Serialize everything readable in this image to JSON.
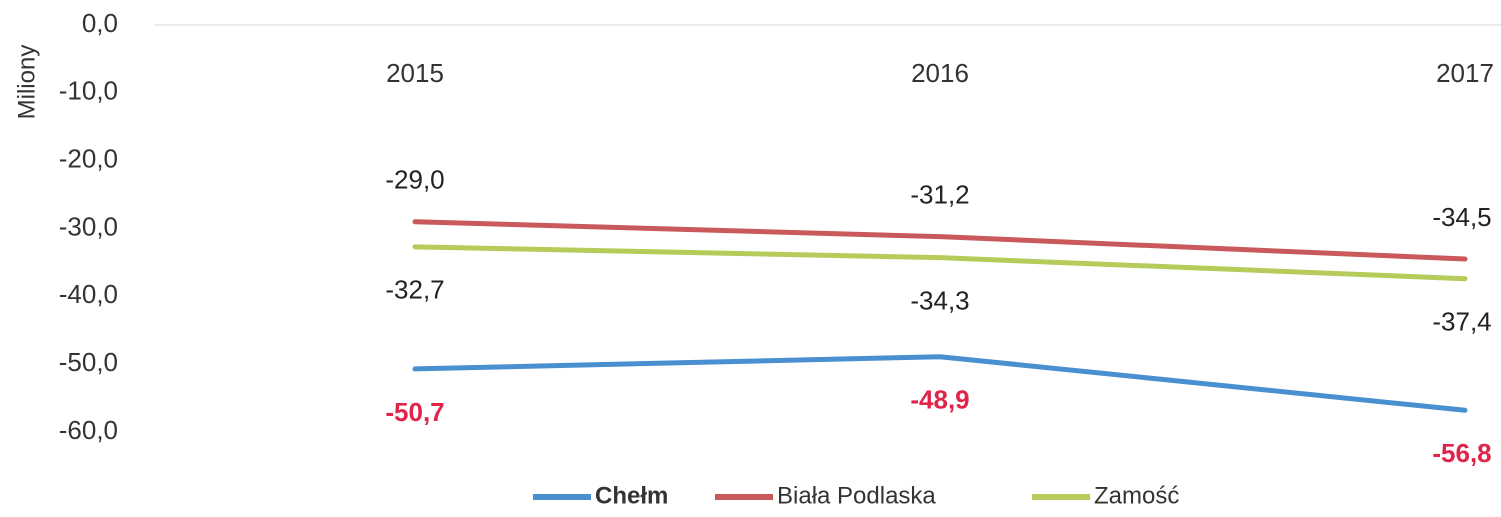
{
  "chart_data": {
    "type": "line",
    "y_label": "Miliony",
    "categories": [
      "2015",
      "2016",
      "2017"
    ],
    "series": [
      {
        "name": "Chełm",
        "color": "#4a8fd0",
        "label_color": "#e0244a",
        "values": [
          -50.7,
          -48.9,
          -56.8
        ],
        "value_labels": [
          "-50,7",
          "-48,9",
          "-56,8"
        ]
      },
      {
        "name": "Biała Podlaska",
        "color": "#c9595a",
        "label_color": "#222222",
        "values": [
          -29.0,
          -31.2,
          -34.5
        ],
        "value_labels": [
          "-29,0",
          "-31,2",
          "-34,5"
        ]
      },
      {
        "name": "Zamość",
        "color": "#b5cb5a",
        "label_color": "#222222",
        "values": [
          -32.7,
          -34.3,
          -37.4
        ],
        "value_labels": [
          "-32,7",
          "-34,3",
          "-37,4"
        ]
      }
    ],
    "ylim": [
      -60,
      0
    ],
    "yticks": [
      {
        "value": 0,
        "label": "0,0"
      },
      {
        "value": -10,
        "label": "-10,0"
      },
      {
        "value": -20,
        "label": "-20,0"
      },
      {
        "value": -30,
        "label": "-30,0"
      },
      {
        "value": -40,
        "label": "-40,0"
      },
      {
        "value": -50,
        "label": "-50,0"
      },
      {
        "value": -60,
        "label": "-60,0"
      }
    ],
    "grid": false
  }
}
